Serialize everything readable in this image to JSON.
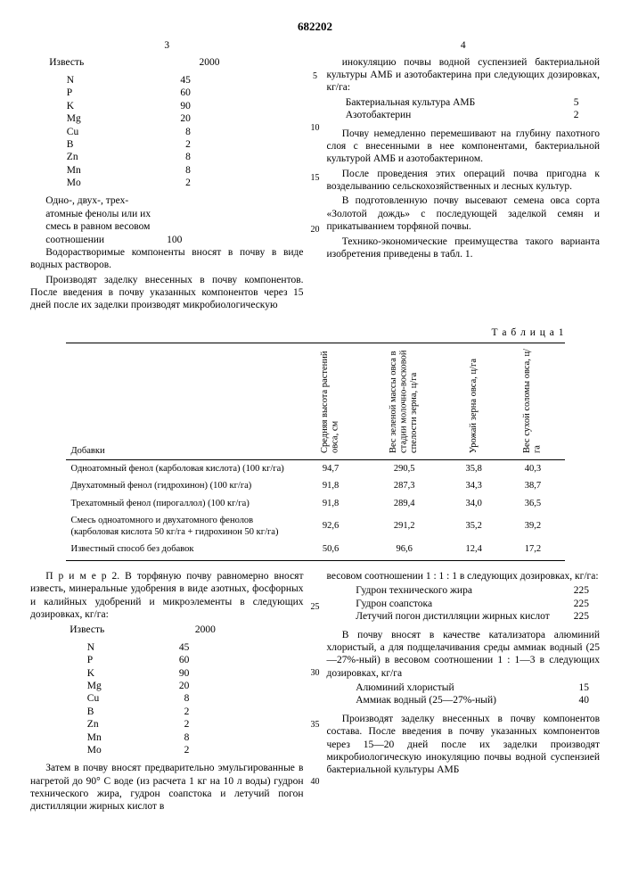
{
  "doc_number": "682202",
  "page_left_num": "3",
  "page_right_num": "4",
  "list1_header1": "Известь",
  "list1_h1v": "2000",
  "list1": [
    {
      "k": "N",
      "v": "45"
    },
    {
      "k": "P",
      "v": "60"
    },
    {
      "k": "K",
      "v": "90"
    },
    {
      "k": "Mg",
      "v": "20"
    },
    {
      "k": "Cu",
      "v": "8"
    },
    {
      "k": "B",
      "v": "2"
    },
    {
      "k": "Zn",
      "v": "8"
    },
    {
      "k": "Mn",
      "v": "8"
    },
    {
      "k": "Mo",
      "v": "2"
    }
  ],
  "phenol_block_l1": "Одно-, двух-, трех-",
  "phenol_block_l2": "атомные фенолы или их",
  "phenol_block_l3": "смесь в равном весовом",
  "phenol_block_l4": "соотношении",
  "phenol_block_v": "100",
  "left_p1": "Водорастворимые компоненты вносят в почву в виде водных растворов.",
  "left_p2": "Производят заделку внесенных в почву компонентов. После введения в почву указанных компонентов через 15 дней после их заделки производят микробиологическую",
  "right_p1": "инокуляцию почвы водной суспензией бактериальной культуры АМБ и азотобактерина при следующих дозировках, кг/га:",
  "right_t_r1k": "Бактериальная культура АМБ",
  "right_t_r1v": "5",
  "right_t_r2k": "Азотобактерин",
  "right_t_r2v": "2",
  "right_p2": "Почву немедленно перемешивают на глубину пахотного слоя с внесенными в нее компонентами, бактериальной культурой АМБ и азотобактерином.",
  "right_p3": "После проведения этих операций почва пригодна к возделыванию сельскохозяйственных и лесных культур.",
  "right_p4": "В подготовленную почву высевают семена овса сорта «Золотой дождь» с последующей заделкой семян и прикатыванием торфяной почвы.",
  "right_p5": "Технико-экономические преимущества такого варианта изобретения приведены в табл. 1.",
  "table1_caption": "Т а б л и ц а 1",
  "th_add": "Добавки",
  "th_c1": "Средняя высота растений овса, см",
  "th_c2": "Вес зеленой массы овса в стадии молочно-восковой спелости зерна, ц/га",
  "th_c3": "Урожай зерна овса, ц/га",
  "th_c4": "Вес сухой соломы овса, ц/га",
  "rows": [
    {
      "d": "Одноатомный фенол (карболовая кислота) (100 кг/га)",
      "c1": "94,7",
      "c2": "290,5",
      "c3": "35,8",
      "c4": "40,3"
    },
    {
      "d": "Двухатомный фенол (гидрохинон) (100 кг/га)",
      "c1": "91,8",
      "c2": "287,3",
      "c3": "34,3",
      "c4": "38,7"
    },
    {
      "d": "Трехатомный фенол (пирогаллол) (100 кг/га)",
      "c1": "91,8",
      "c2": "289,4",
      "c3": "34,0",
      "c4": "36,5"
    },
    {
      "d": "Смесь одноатомного и двухатомного фенолов (карболовая кислота 50 кг/га + гидрохинон 50 кг/га)",
      "c1": "92,6",
      "c2": "291,2",
      "c3": "35,2",
      "c4": "39,2"
    },
    {
      "d": "Известный способ без добавок",
      "c1": "50,6",
      "c2": "96,6",
      "c3": "12,4",
      "c4": "17,2"
    }
  ],
  "ex2_p1": "П р и м е р  2.  В торфяную почву равномерно вносят известь, минеральные удобрения в виде азотных, фосфорных и калийных удобрений и микроэлементы в следующих дозировках, кг/га:",
  "list2_header1": "Известь",
  "list2_h1v": "2000",
  "list2": [
    {
      "k": "N",
      "v": "45"
    },
    {
      "k": "P",
      "v": "60"
    },
    {
      "k": "K",
      "v": "90"
    },
    {
      "k": "Mg",
      "v": "20"
    },
    {
      "k": "Cu",
      "v": "8"
    },
    {
      "k": "B",
      "v": "2"
    },
    {
      "k": "Zn",
      "v": "2"
    },
    {
      "k": "Mn",
      "v": "8"
    },
    {
      "k": "Mo",
      "v": "2"
    }
  ],
  "ex2_p2": "Затем в почву вносят предварительно эмульгированные в нагретой до 90° С воде (из расчета 1 кг на 10 л воды) гудрон технического жира, гудрон соапстока и летучий погон дистилляции жирных кислот в",
  "rcol_p1": "весовом соотношении 1 : 1 : 1 в следующих дозировках, кг/га:",
  "rcol_t_r1k": "Гудрон технического жира",
  "rcol_t_r1v": "225",
  "rcol_t_r2k": "Гудрон соапстока",
  "rcol_t_r2v": "225",
  "rcol_t_r3k": "Летучий погон дистилляции жирных кислот",
  "rcol_t_r3v": "225",
  "rcol_p2": "В почву вносят в качестве катализатора алюминий хлористый, а для подщелачивания среды аммиак водный (25—27%-ный) в весовом соотношении 1 : 1—3 в следующих дозировках, кг/га",
  "rcol_t2_r1k": "Алюминий хлористый",
  "rcol_t2_r1v": "15",
  "rcol_t2_r2k": "Аммиак водный (25—27%-ный)",
  "rcol_t2_r2v": "40",
  "rcol_p3": "Производят заделку внесенных в почву компонентов состава. После введения в почву указанных компонентов через 15—20 дней после их заделки производят микробиологическую инокуляцию почвы водной суспензией бактериальной культуры АМБ",
  "ln5": "5",
  "ln10": "10",
  "ln15": "15",
  "ln20": "20",
  "ln25": "25",
  "ln30": "30",
  "ln35": "35",
  "ln40": "40"
}
